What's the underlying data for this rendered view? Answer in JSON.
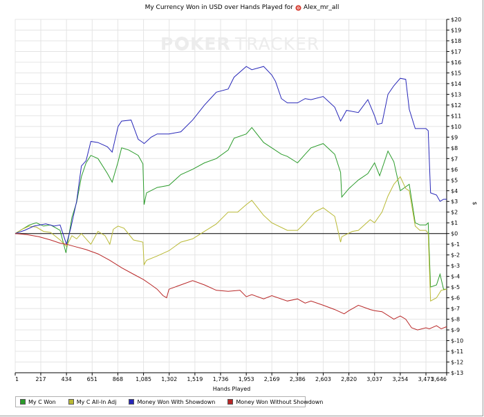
{
  "title": {
    "text": "My Currency Won in USD over Hands Played for",
    "player": "Alex_mr_all",
    "player_icon": "poker-chip-icon"
  },
  "watermark": {
    "poker": "P",
    "ker": "KER",
    "tracker": "TRACKER",
    "brand": "POKERTRACKER"
  },
  "colors": {
    "my_c_won": "#2a9b2a",
    "all_in_adj": "#b9b934",
    "with_showdown": "#2626b8",
    "without_showdown": "#b82626",
    "grid": "#e4e4e4",
    "zero_line": "#000000"
  },
  "chart_data": {
    "type": "line",
    "title": "My Currency Won in USD over Hands Played for Alex_mr_all",
    "xlabel": "Hands Played",
    "ylabel": "$",
    "xlim": [
      1,
      3646
    ],
    "ylim": [
      -13,
      20
    ],
    "grid": true,
    "legend_position": "bottom-left",
    "x_ticks": [
      "1",
      "217",
      "434",
      "651",
      "868",
      "1,085",
      "1,302",
      "1,519",
      "1,736",
      "1,953",
      "2,169",
      "2,386",
      "2,603",
      "2,820",
      "3,037",
      "3,254",
      "3,471",
      "3,646"
    ],
    "x_tick_values": [
      1,
      217,
      434,
      651,
      868,
      1085,
      1302,
      1519,
      1736,
      1953,
      2169,
      2386,
      2603,
      2820,
      3037,
      3254,
      3471,
      3646
    ],
    "y_ticks": [
      "$20",
      "$19",
      "$18",
      "$17",
      "$16",
      "$15",
      "$14",
      "$13",
      "$12",
      "$11",
      "$10",
      "$9",
      "$8",
      "$7",
      "$6",
      "$5",
      "$4",
      "$3",
      "$2",
      "$1",
      "$0",
      "$-1",
      "$-2",
      "$-3",
      "$-4",
      "$-5",
      "$-6",
      "$-7",
      "$-8",
      "$-9",
      "$-10",
      "$-11",
      "$-12",
      "$-13"
    ],
    "y_tick_values": [
      20,
      19,
      18,
      17,
      16,
      15,
      14,
      13,
      12,
      11,
      10,
      9,
      8,
      7,
      6,
      5,
      4,
      3,
      2,
      1,
      0,
      -1,
      -2,
      -3,
      -4,
      -5,
      -6,
      -7,
      -8,
      -9,
      -10,
      -11,
      -12,
      -13
    ],
    "series": [
      {
        "name": "My C Won",
        "color": "#2a9b2a",
        "points": [
          [
            1,
            0
          ],
          [
            60,
            0.4
          ],
          [
            120,
            0.8
          ],
          [
            180,
            1.0
          ],
          [
            240,
            0.7
          ],
          [
            300,
            0.8
          ],
          [
            380,
            0.3
          ],
          [
            430,
            -1.8
          ],
          [
            480,
            1.5
          ],
          [
            520,
            2.9
          ],
          [
            560,
            5.3
          ],
          [
            600,
            6.6
          ],
          [
            640,
            7.3
          ],
          [
            700,
            7.0
          ],
          [
            780,
            5.6
          ],
          [
            820,
            4.8
          ],
          [
            870,
            6.7
          ],
          [
            900,
            8.0
          ],
          [
            960,
            7.8
          ],
          [
            1040,
            7.3
          ],
          [
            1080,
            6.5
          ],
          [
            1090,
            2.7
          ],
          [
            1110,
            3.8
          ],
          [
            1200,
            4.3
          ],
          [
            1300,
            4.5
          ],
          [
            1400,
            5.5
          ],
          [
            1500,
            6.0
          ],
          [
            1600,
            6.6
          ],
          [
            1700,
            7.0
          ],
          [
            1800,
            7.8
          ],
          [
            1850,
            8.9
          ],
          [
            1953,
            9.3
          ],
          [
            2000,
            9.9
          ],
          [
            2100,
            8.5
          ],
          [
            2169,
            8.0
          ],
          [
            2250,
            7.4
          ],
          [
            2300,
            7.2
          ],
          [
            2386,
            6.6
          ],
          [
            2450,
            7.4
          ],
          [
            2500,
            8.0
          ],
          [
            2603,
            8.4
          ],
          [
            2700,
            7.4
          ],
          [
            2750,
            5.7
          ],
          [
            2760,
            3.4
          ],
          [
            2820,
            4.2
          ],
          [
            2900,
            5.0
          ],
          [
            2980,
            5.6
          ],
          [
            3037,
            6.6
          ],
          [
            3080,
            5.4
          ],
          [
            3150,
            7.7
          ],
          [
            3200,
            6.7
          ],
          [
            3254,
            4.0
          ],
          [
            3330,
            4.6
          ],
          [
            3380,
            1.0
          ],
          [
            3420,
            0.8
          ],
          [
            3471,
            0.8
          ],
          [
            3490,
            1.0
          ],
          [
            3510,
            -5.0
          ],
          [
            3560,
            -4.8
          ],
          [
            3590,
            -3.8
          ],
          [
            3620,
            -5.2
          ],
          [
            3646,
            -5.2
          ]
        ]
      },
      {
        "name": "My C All-In Adj",
        "color": "#b9b934",
        "points": [
          [
            1,
            0
          ],
          [
            60,
            0.4
          ],
          [
            120,
            0.7
          ],
          [
            180,
            0.6
          ],
          [
            240,
            0.2
          ],
          [
            300,
            0.1
          ],
          [
            380,
            -0.6
          ],
          [
            434,
            -1.2
          ],
          [
            480,
            -0.2
          ],
          [
            520,
            -0.5
          ],
          [
            560,
            0.0
          ],
          [
            600,
            -0.5
          ],
          [
            640,
            -1.0
          ],
          [
            700,
            0.2
          ],
          [
            760,
            -0.2
          ],
          [
            800,
            -1.0
          ],
          [
            830,
            0.4
          ],
          [
            870,
            0.7
          ],
          [
            920,
            0.5
          ],
          [
            1000,
            -0.6
          ],
          [
            1080,
            -0.8
          ],
          [
            1090,
            -2.9
          ],
          [
            1110,
            -2.5
          ],
          [
            1200,
            -2.1
          ],
          [
            1300,
            -1.6
          ],
          [
            1400,
            -0.8
          ],
          [
            1500,
            -0.5
          ],
          [
            1600,
            0.2
          ],
          [
            1700,
            0.9
          ],
          [
            1800,
            2.0
          ],
          [
            1880,
            2.0
          ],
          [
            1953,
            2.7
          ],
          [
            2000,
            3.1
          ],
          [
            2100,
            1.7
          ],
          [
            2169,
            1.0
          ],
          [
            2300,
            0.3
          ],
          [
            2386,
            0.3
          ],
          [
            2450,
            1.0
          ],
          [
            2530,
            2.0
          ],
          [
            2603,
            2.4
          ],
          [
            2700,
            1.6
          ],
          [
            2750,
            -0.8
          ],
          [
            2760,
            -0.3
          ],
          [
            2850,
            0.2
          ],
          [
            2900,
            0.3
          ],
          [
            3000,
            1.3
          ],
          [
            3037,
            1.0
          ],
          [
            3100,
            2.0
          ],
          [
            3150,
            3.5
          ],
          [
            3200,
            4.6
          ],
          [
            3254,
            5.3
          ],
          [
            3300,
            4.2
          ],
          [
            3330,
            4.0
          ],
          [
            3380,
            0.7
          ],
          [
            3420,
            0.3
          ],
          [
            3471,
            0.3
          ],
          [
            3490,
            0.0
          ],
          [
            3510,
            -6.3
          ],
          [
            3560,
            -6.0
          ],
          [
            3600,
            -5.3
          ],
          [
            3646,
            -5.2
          ]
        ]
      },
      {
        "name": "Money Won With Showdown",
        "color": "#2626b8",
        "points": [
          [
            1,
            0
          ],
          [
            80,
            0.3
          ],
          [
            160,
            0.7
          ],
          [
            260,
            0.9
          ],
          [
            330,
            0.7
          ],
          [
            380,
            0.8
          ],
          [
            434,
            -1.0
          ],
          [
            470,
            0.5
          ],
          [
            520,
            3.0
          ],
          [
            560,
            6.3
          ],
          [
            600,
            6.8
          ],
          [
            640,
            8.6
          ],
          [
            700,
            8.5
          ],
          [
            780,
            8.1
          ],
          [
            820,
            7.6
          ],
          [
            870,
            10.0
          ],
          [
            900,
            10.5
          ],
          [
            980,
            10.6
          ],
          [
            1040,
            8.8
          ],
          [
            1080,
            8.5
          ],
          [
            1090,
            8.4
          ],
          [
            1110,
            8.6
          ],
          [
            1150,
            9.0
          ],
          [
            1200,
            9.3
          ],
          [
            1300,
            9.3
          ],
          [
            1400,
            9.5
          ],
          [
            1500,
            10.6
          ],
          [
            1600,
            12.0
          ],
          [
            1650,
            12.6
          ],
          [
            1700,
            13.2
          ],
          [
            1800,
            13.5
          ],
          [
            1850,
            14.6
          ],
          [
            1953,
            15.6
          ],
          [
            2000,
            15.3
          ],
          [
            2100,
            15.6
          ],
          [
            2169,
            14.8
          ],
          [
            2200,
            14.2
          ],
          [
            2250,
            12.6
          ],
          [
            2300,
            12.2
          ],
          [
            2386,
            12.2
          ],
          [
            2450,
            12.6
          ],
          [
            2500,
            12.5
          ],
          [
            2603,
            12.8
          ],
          [
            2700,
            11.8
          ],
          [
            2750,
            10.5
          ],
          [
            2800,
            11.5
          ],
          [
            2900,
            11.3
          ],
          [
            2980,
            12.5
          ],
          [
            3037,
            11.0
          ],
          [
            3060,
            10.2
          ],
          [
            3100,
            10.3
          ],
          [
            3150,
            13.0
          ],
          [
            3200,
            13.8
          ],
          [
            3254,
            14.5
          ],
          [
            3300,
            14.4
          ],
          [
            3330,
            11.6
          ],
          [
            3380,
            9.8
          ],
          [
            3420,
            9.8
          ],
          [
            3471,
            9.8
          ],
          [
            3490,
            9.6
          ],
          [
            3510,
            3.8
          ],
          [
            3560,
            3.6
          ],
          [
            3590,
            3.0
          ],
          [
            3620,
            3.2
          ],
          [
            3646,
            3.2
          ]
        ]
      },
      {
        "name": "Money Won Without Showdown",
        "color": "#b82626",
        "points": [
          [
            1,
            0
          ],
          [
            100,
            -0.1
          ],
          [
            200,
            -0.3
          ],
          [
            300,
            -0.6
          ],
          [
            380,
            -0.9
          ],
          [
            434,
            -1.0
          ],
          [
            500,
            -1.2
          ],
          [
            600,
            -1.5
          ],
          [
            700,
            -1.9
          ],
          [
            800,
            -2.5
          ],
          [
            900,
            -3.2
          ],
          [
            1000,
            -3.8
          ],
          [
            1085,
            -4.3
          ],
          [
            1150,
            -4.8
          ],
          [
            1200,
            -5.2
          ],
          [
            1250,
            -5.8
          ],
          [
            1280,
            -6.0
          ],
          [
            1300,
            -5.2
          ],
          [
            1400,
            -4.8
          ],
          [
            1500,
            -4.4
          ],
          [
            1600,
            -4.8
          ],
          [
            1700,
            -5.3
          ],
          [
            1800,
            -5.4
          ],
          [
            1900,
            -5.3
          ],
          [
            1953,
            -5.9
          ],
          [
            2000,
            -5.7
          ],
          [
            2100,
            -6.1
          ],
          [
            2169,
            -5.8
          ],
          [
            2300,
            -6.3
          ],
          [
            2386,
            -6.1
          ],
          [
            2450,
            -6.5
          ],
          [
            2500,
            -6.3
          ],
          [
            2603,
            -6.7
          ],
          [
            2700,
            -7.1
          ],
          [
            2780,
            -7.5
          ],
          [
            2820,
            -7.2
          ],
          [
            2900,
            -6.7
          ],
          [
            3000,
            -7.1
          ],
          [
            3037,
            -7.2
          ],
          [
            3100,
            -7.3
          ],
          [
            3200,
            -8.0
          ],
          [
            3254,
            -7.7
          ],
          [
            3300,
            -8.0
          ],
          [
            3350,
            -8.8
          ],
          [
            3400,
            -9.0
          ],
          [
            3471,
            -8.8
          ],
          [
            3500,
            -8.9
          ],
          [
            3560,
            -8.6
          ],
          [
            3600,
            -8.9
          ],
          [
            3646,
            -8.7
          ]
        ]
      }
    ]
  },
  "legend": [
    {
      "label": "My C Won",
      "color": "#2a9b2a"
    },
    {
      "label": "My C All-In Adj",
      "color": "#b9b934"
    },
    {
      "label": "Money Won With Showdown",
      "color": "#2626b8"
    },
    {
      "label": "Money Won Without Showdown",
      "color": "#b82626"
    }
  ]
}
